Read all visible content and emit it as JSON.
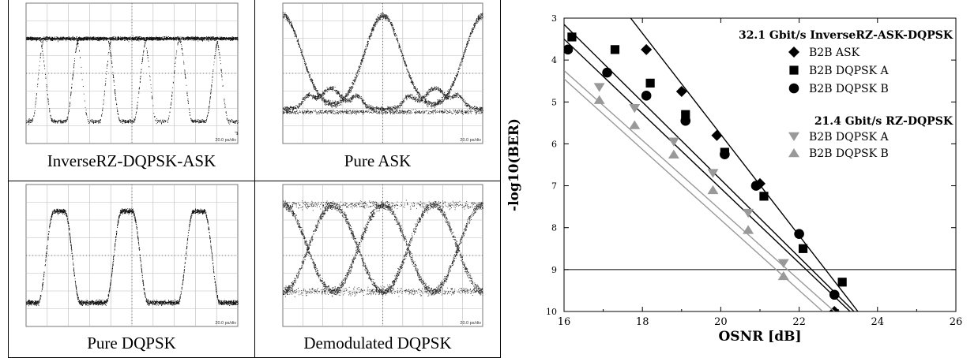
{
  "panels": [
    {
      "caption": "InverseRZ-DQPSK-ASK",
      "scale": "20.0 ps/div"
    },
    {
      "caption": "Pure ASK",
      "scale": "20.0 ps/div"
    },
    {
      "caption": "Pure DQPSK",
      "scale": "20.0 ps/div"
    },
    {
      "caption": "Demodulated DQPSK",
      "scale": "20.0 ps/div"
    }
  ],
  "chart_data": {
    "type": "scatter",
    "xlabel": "OSNR [dB]",
    "ylabel": "-log10(BER)",
    "xlim": [
      16,
      26
    ],
    "ylim": [
      3,
      10
    ],
    "x_ticks": [
      16,
      18,
      20,
      22,
      24,
      26
    ],
    "y_ticks": [
      3,
      4,
      5,
      6,
      7,
      8,
      9,
      10
    ],
    "reference_line_y": 9,
    "grid": false,
    "legend_position": "top-right",
    "legend_groups": [
      {
        "title": "32.1 Gbit/s InverseRZ-ASK-DQPSK",
        "entries": [
          "B2B ASK",
          "B2B DQPSK A",
          "B2B DQPSK B"
        ]
      },
      {
        "title": "21.4 Gbit/s RZ-DQPSK",
        "entries": [
          "B2B DQPSK A",
          "B2B DQPSK B"
        ]
      }
    ],
    "series": [
      {
        "name": "B2B ASK",
        "marker": "diamond",
        "color": "#000000",
        "x": [
          18.1,
          19.0,
          19.9,
          21.0,
          22.9
        ],
        "y": [
          3.75,
          4.75,
          5.8,
          6.95,
          10.0
        ],
        "fit": [
          [
            17.7,
            3.0
          ],
          [
            23.5,
            10.0
          ]
        ]
      },
      {
        "name": "B2B DQPSK A",
        "marker": "square",
        "color": "#000000",
        "x": [
          16.2,
          17.3,
          18.2,
          19.1,
          20.1,
          21.1,
          22.1,
          23.1
        ],
        "y": [
          3.45,
          3.75,
          4.55,
          5.3,
          6.2,
          7.25,
          8.5,
          9.3
        ],
        "fit": [
          [
            16.0,
            3.15
          ],
          [
            23.4,
            10.0
          ]
        ]
      },
      {
        "name": "B2B DQPSK B",
        "marker": "circle",
        "color": "#000000",
        "x": [
          16.1,
          17.1,
          18.1,
          19.1,
          20.1,
          20.9,
          22.0,
          22.9
        ],
        "y": [
          3.75,
          4.3,
          4.85,
          5.45,
          6.25,
          7.0,
          8.15,
          9.6
        ],
        "fit": [
          [
            16.0,
            3.5
          ],
          [
            23.3,
            10.0
          ]
        ]
      },
      {
        "name": "B2B DQPSK A",
        "marker": "triangle-down",
        "color": "#999999",
        "x": [
          16.9,
          17.8,
          18.8,
          19.8,
          20.7,
          21.6
        ],
        "y": [
          4.65,
          5.15,
          5.95,
          6.7,
          7.65,
          8.85
        ],
        "fit": [
          [
            16.0,
            4.25
          ],
          [
            22.9,
            10.0
          ]
        ]
      },
      {
        "name": "B2B DQPSK B",
        "marker": "triangle-up",
        "color": "#999999",
        "x": [
          16.9,
          17.8,
          18.8,
          19.8,
          20.7,
          21.6
        ],
        "y": [
          4.95,
          5.55,
          6.25,
          7.1,
          8.05,
          9.15
        ],
        "fit": [
          [
            16.0,
            4.45
          ],
          [
            22.6,
            10.0
          ]
        ]
      }
    ]
  }
}
